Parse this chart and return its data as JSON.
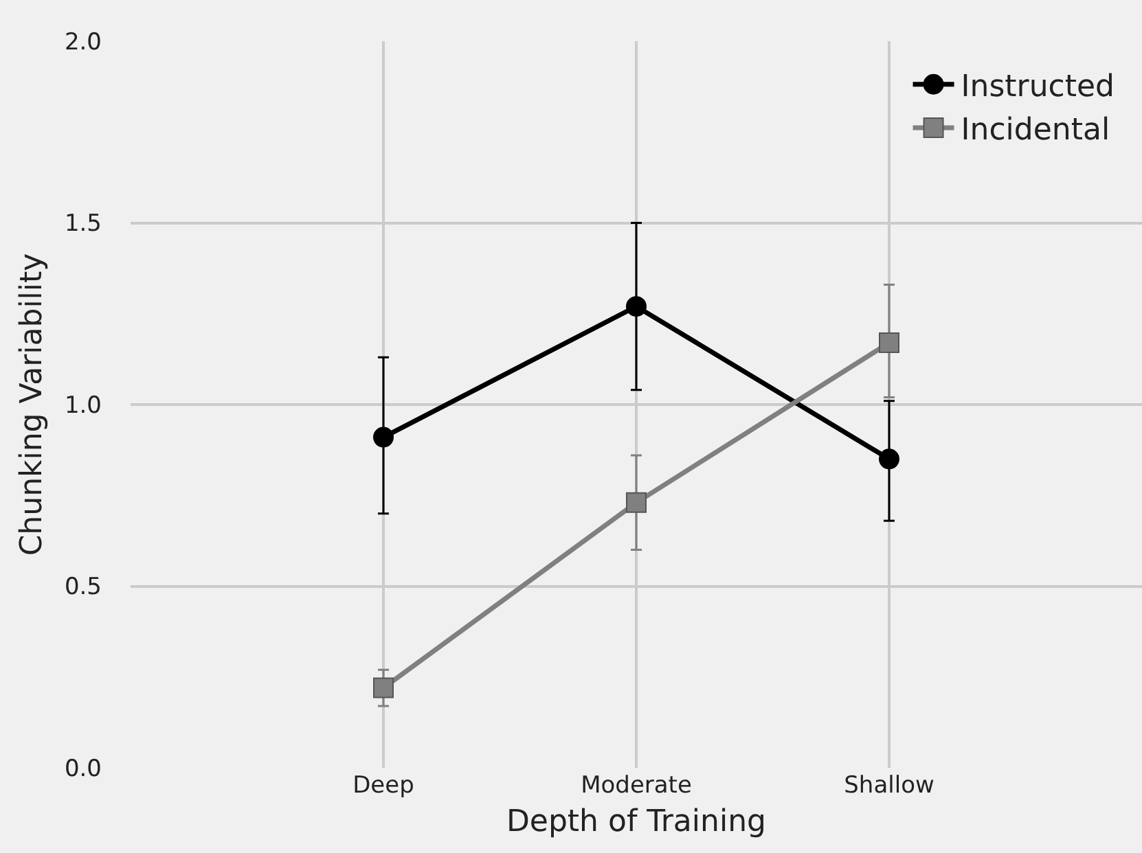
{
  "chart_data": {
    "type": "line",
    "xlabel": "Depth of Training",
    "ylabel": "Chunking Variability",
    "categories": [
      "Deep",
      "Moderate",
      "Shallow"
    ],
    "series": [
      {
        "name": "Instructed",
        "color": "#000000",
        "marker": "circle",
        "values": [
          0.91,
          1.27,
          0.85
        ],
        "errors": [
          [
            0.7,
            1.13
          ],
          [
            1.04,
            1.5
          ],
          [
            0.68,
            1.01
          ]
        ]
      },
      {
        "name": "Incidental",
        "color": "#808080",
        "marker": "square",
        "values": [
          0.22,
          0.73,
          1.17
        ],
        "errors": [
          [
            0.17,
            0.27
          ],
          [
            0.6,
            0.86
          ],
          [
            1.02,
            1.33
          ]
        ]
      }
    ],
    "ylim": [
      0,
      2
    ],
    "yticks": [
      {
        "value": 0,
        "label": "0.0"
      },
      {
        "value": 0.5,
        "label": "0.5"
      },
      {
        "value": 1,
        "label": "1.0"
      },
      {
        "value": 1.5,
        "label": "1.5"
      },
      {
        "value": 2,
        "label": "2.0"
      }
    ],
    "grid": true,
    "legend": "top right",
    "line_style": "solid"
  }
}
